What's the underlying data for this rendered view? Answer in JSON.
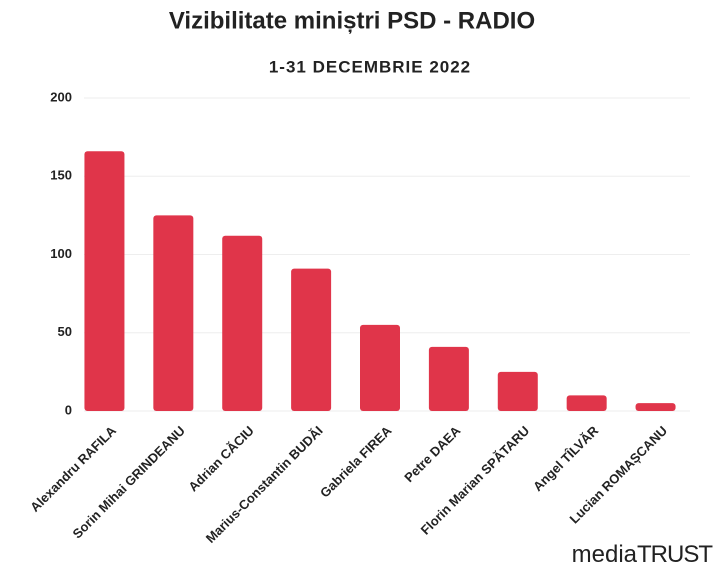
{
  "chart_data": {
    "type": "bar",
    "title": "Vizibilitate miniștri PSD - RADIO",
    "subtitle": "1-31 DECEMBRIE 2022",
    "categories": [
      "Alexandru RAFILA",
      "Sorin Mihai GRINDEANU",
      "Adrian CĂCIU",
      "Marius-Constantin BUDĂI",
      "Gabriela FIREA",
      "Petre DAEA",
      "Florin Marian SPĂTARU",
      "Angel TÎLVĂR",
      "Lucian ROMAȘCANU"
    ],
    "values": [
      166,
      125,
      112,
      91,
      55,
      41,
      25,
      10,
      5
    ],
    "color": "#e0354a",
    "ylim": [
      0,
      200
    ],
    "yticks": [
      0,
      50,
      100,
      150,
      200
    ],
    "grid": true
  },
  "logo": {
    "part1": "media",
    "part2": "TRUST"
  }
}
